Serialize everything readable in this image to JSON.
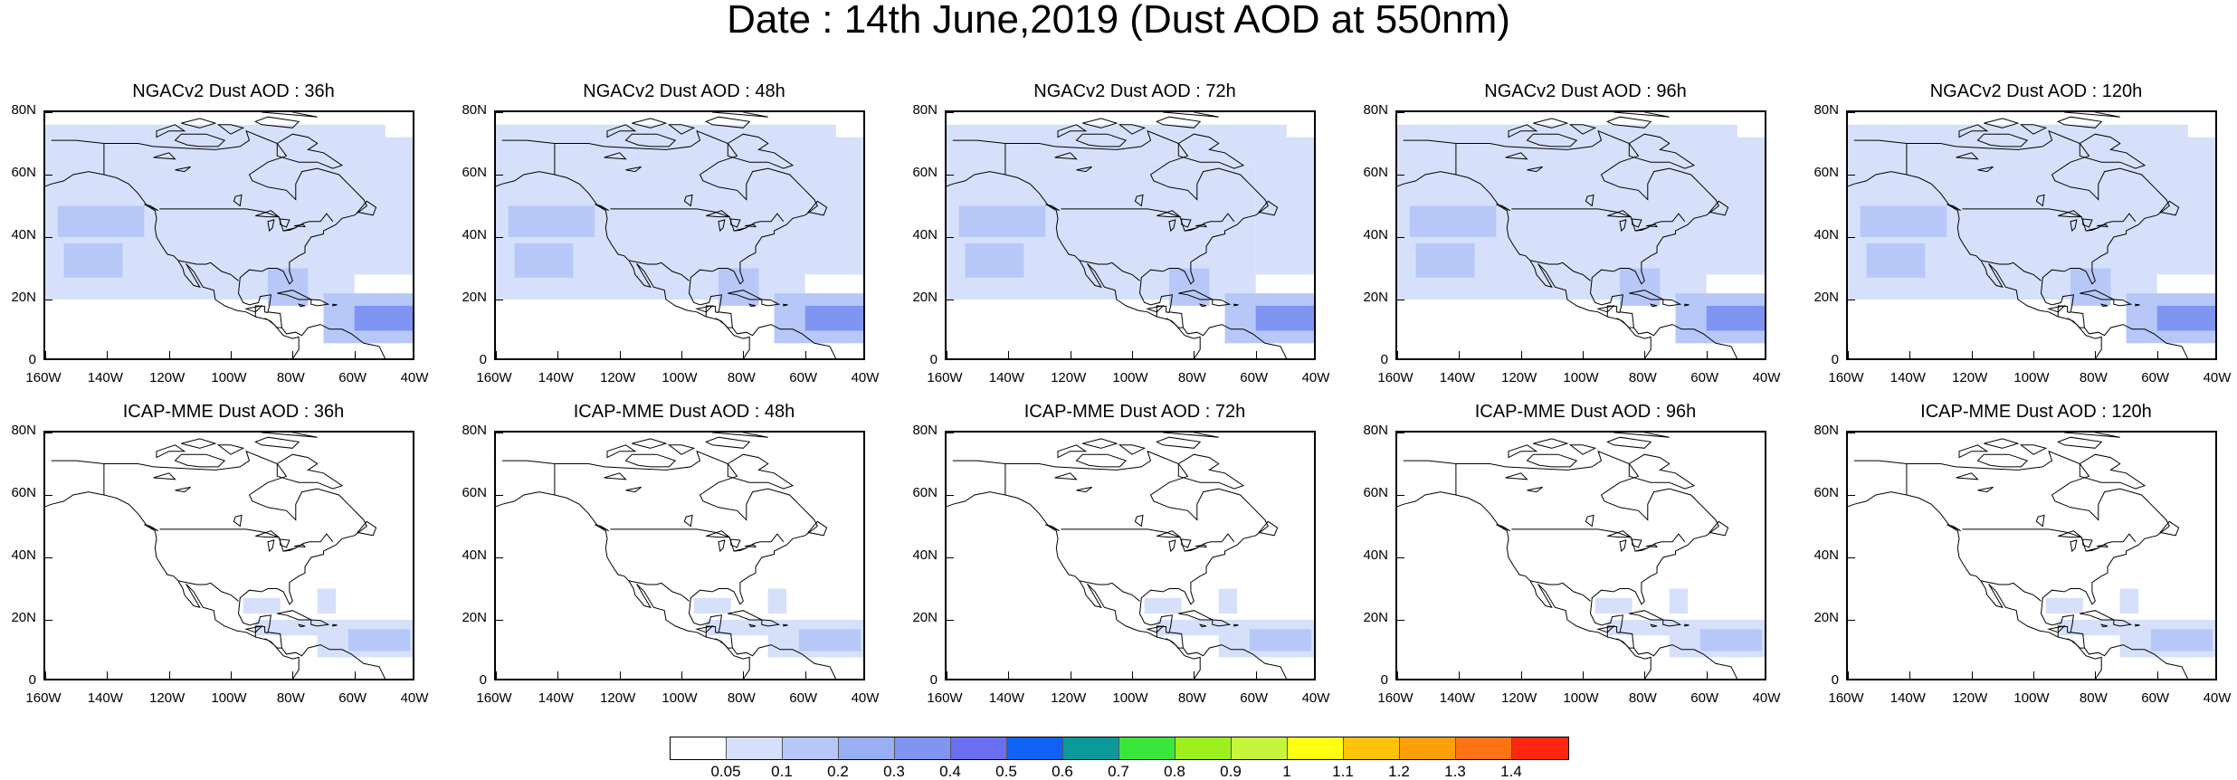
{
  "figure": {
    "title": "Date : 14th June,2019 (Dust AOD at 550nm)"
  },
  "axes": {
    "lat_labels": [
      "80N",
      "60N",
      "40N",
      "20N",
      "0"
    ],
    "lon_labels": [
      "160W",
      "140W",
      "120W",
      "100W",
      "80W",
      "60W",
      "40W"
    ],
    "lat_range": [
      0,
      80
    ],
    "lon_range": [
      -160,
      -40
    ]
  },
  "panels": [
    {
      "title": "NGACv2 Dust AOD : 36h",
      "model": "NGACv2",
      "lead": "36h"
    },
    {
      "title": "NGACv2 Dust AOD : 48h",
      "model": "NGACv2",
      "lead": "48h"
    },
    {
      "title": "NGACv2 Dust AOD : 72h",
      "model": "NGACv2",
      "lead": "72h"
    },
    {
      "title": "NGACv2 Dust AOD : 96h",
      "model": "NGACv2",
      "lead": "96h"
    },
    {
      "title": "NGACv2 Dust AOD : 120h",
      "model": "NGACv2",
      "lead": "120h"
    },
    {
      "title": "ICAP-MME Dust AOD : 36h",
      "model": "ICAP-MME",
      "lead": "36h"
    },
    {
      "title": "ICAP-MME Dust AOD : 48h",
      "model": "ICAP-MME",
      "lead": "48h"
    },
    {
      "title": "ICAP-MME Dust AOD : 72h",
      "model": "ICAP-MME",
      "lead": "72h"
    },
    {
      "title": "ICAP-MME Dust AOD : 96h",
      "model": "ICAP-MME",
      "lead": "96h"
    },
    {
      "title": "ICAP-MME Dust AOD : 120h",
      "model": "ICAP-MME",
      "lead": "120h"
    }
  ],
  "colorbar": {
    "levels": [
      "0.05",
      "0.1",
      "0.2",
      "0.3",
      "0.4",
      "0.5",
      "0.6",
      "0.7",
      "0.8",
      "0.9",
      "1",
      "1.1",
      "1.2",
      "1.3",
      "1.4"
    ],
    "colors": [
      "#ffffff",
      "#d6e0fb",
      "#b7c8f8",
      "#98aef5",
      "#8095f2",
      "#6a6ef0",
      "#0f62f5",
      "#0a9a9a",
      "#3be63b",
      "#9ef01d",
      "#c6f53c",
      "#ffff14",
      "#ffc30a",
      "#ff9f0a",
      "#ff7314",
      "#ff280f"
    ]
  },
  "map_colors": {
    "land_outline": "#000000",
    "light_dust": "#d6e0fb",
    "medium_dust": "#b7c8f8",
    "strong_dust": "#8095f2"
  }
}
